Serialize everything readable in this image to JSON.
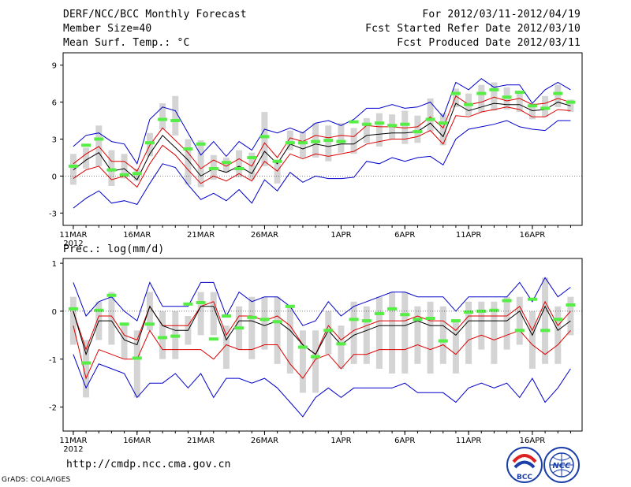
{
  "header": {
    "title": "DERF/NCC/BCC Monthly Forecast",
    "member_size": "Member Size=40",
    "variable": "Mean Surf. Temp.: °C",
    "period": "For 2012/03/11-2012/04/19",
    "fcst_started": "Fcst Started Refer Date 2012/03/10",
    "fcst_produced": "Fcst Produced Date 2012/03/11"
  },
  "footer": {
    "url": "http://cmdp.ncc.cma.gov.cn",
    "grads": "GrADS: COLA/IGES",
    "logo1_text": "BCC",
    "logo2_text": "NCC"
  },
  "colors": {
    "box": "#d4d4d4",
    "obs": "#55ee44",
    "mean": "#000000",
    "std": "#dd0000",
    "range": "#0000cc"
  },
  "chart_data": [
    {
      "type": "line",
      "title": "Mean Surf. Temp.: °C",
      "x_tick_labels": [
        "11MAR",
        "16MAR",
        "21MAR",
        "26MAR",
        "1APR",
        "6APR",
        "11APR",
        "16APR"
      ],
      "x_tick_days": [
        1,
        6,
        11,
        16,
        22,
        27,
        32,
        37
      ],
      "x_sublabel": "2012",
      "days": [
        1,
        2,
        3,
        4,
        5,
        6,
        7,
        8,
        9,
        10,
        11,
        12,
        13,
        14,
        15,
        16,
        17,
        18,
        19,
        20,
        21,
        22,
        23,
        24,
        25,
        26,
        27,
        28,
        29,
        30,
        31,
        32,
        33,
        34,
        35,
        36,
        37,
        38,
        39,
        40
      ],
      "ylim": [
        -4,
        10
      ],
      "y_ticks": [
        -3,
        0,
        3,
        6,
        9
      ],
      "series": [
        {
          "name": "max",
          "values": [
            -2.6,
            -1.8,
            -1.2,
            -2.2,
            -2.0,
            -2.3,
            -0.6,
            1.0,
            0.7,
            -0.7,
            -1.9,
            -1.4,
            -2.0,
            -1.1,
            -2.2,
            -0.3,
            -1.2,
            0.3,
            -0.5,
            0.0,
            -0.2,
            -0.2,
            -0.1,
            1.2,
            1.0,
            1.5,
            1.2,
            1.5,
            1.6,
            0.9,
            3.0,
            3.8,
            4.0,
            4.2,
            4.5,
            4.0,
            3.8,
            3.7,
            4.5,
            4.5
          ]
        },
        {
          "name": "std_low",
          "values": [
            -0.2,
            0.5,
            0.8,
            -0.3,
            0.0,
            -0.9,
            1.0,
            2.5,
            1.7,
            0.5,
            -0.6,
            0.0,
            -0.4,
            0.2,
            -0.4,
            1.2,
            0.4,
            1.8,
            1.4,
            1.8,
            1.6,
            1.8,
            2.0,
            2.6,
            2.8,
            3.0,
            3.0,
            3.2,
            3.7,
            2.6,
            4.9,
            4.8,
            5.2,
            5.4,
            5.6,
            5.4,
            4.8,
            4.8,
            5.4,
            5.3
          ]
        },
        {
          "name": "mean",
          "values": [
            0.5,
            1.3,
            1.9,
            0.4,
            0.6,
            -0.3,
            1.8,
            3.3,
            2.3,
            1.3,
            0.0,
            0.6,
            0.3,
            0.8,
            0.2,
            2.0,
            1.0,
            2.6,
            2.2,
            2.6,
            2.4,
            2.6,
            2.6,
            3.3,
            3.4,
            3.5,
            3.5,
            3.6,
            4.3,
            3.2,
            5.9,
            5.3,
            5.6,
            5.9,
            5.8,
            5.8,
            5.3,
            5.4,
            6.0,
            5.7
          ]
        },
        {
          "name": "std_high",
          "values": [
            1.0,
            1.8,
            2.4,
            1.2,
            1.2,
            0.4,
            2.5,
            3.9,
            2.9,
            1.9,
            0.6,
            1.3,
            0.8,
            1.4,
            0.8,
            2.7,
            1.5,
            3.1,
            2.8,
            3.3,
            3.1,
            3.3,
            3.2,
            4.1,
            4.0,
            4.0,
            3.9,
            4.0,
            4.8,
            3.9,
            6.5,
            5.8,
            6.0,
            6.4,
            6.1,
            6.3,
            5.8,
            5.9,
            6.3,
            6.0
          ]
        },
        {
          "name": "min",
          "values": [
            2.4,
            3.3,
            3.5,
            2.8,
            2.6,
            1.0,
            4.6,
            5.6,
            5.3,
            3.5,
            1.7,
            2.8,
            1.6,
            2.8,
            2.1,
            3.8,
            3.5,
            3.9,
            3.5,
            4.3,
            4.5,
            4.1,
            4.6,
            5.5,
            5.5,
            5.8,
            5.5,
            5.6,
            6.0,
            4.8,
            7.6,
            7.0,
            7.9,
            7.2,
            7.4,
            7.4,
            5.9,
            7.0,
            7.6,
            7.0
          ]
        },
        {
          "name": "box_low",
          "values": [
            -0.7,
            0.6,
            0.8,
            -0.8,
            -0.2,
            -0.4,
            1.6,
            3.8,
            3.3,
            -0.7,
            -0.9,
            -0.3,
            0.3,
            -0.1,
            -0.3,
            0.8,
            -0.6,
            2.1,
            1.5,
            1.5,
            1.2,
            1.9,
            1.8,
            2.7,
            2.4,
            3.0,
            2.6,
            2.7,
            3.6,
            2.5,
            5.6,
            4.9,
            5.2,
            5.3,
            5.4,
            5.2,
            4.6,
            4.8,
            5.6,
            5.2
          ]
        },
        {
          "name": "box_high",
          "values": [
            1.8,
            2.3,
            4.1,
            2.1,
            1.8,
            0.6,
            3.5,
            5.9,
            6.5,
            3.0,
            2.9,
            1.7,
            1.5,
            2.1,
            1.9,
            5.2,
            1.3,
            3.7,
            3.6,
            4.3,
            4.1,
            4.3,
            3.9,
            4.7,
            5.1,
            5.0,
            5.3,
            4.9,
            6.3,
            5.1,
            7.1,
            6.7,
            7.4,
            7.6,
            7.2,
            6.8,
            5.9,
            6.5,
            7.4,
            6.2
          ]
        },
        {
          "name": "observed",
          "values": [
            0.8,
            2.5,
            3.0,
            0.5,
            0.1,
            0.2,
            2.7,
            4.6,
            4.5,
            2.2,
            2.6,
            0.6,
            1.1,
            0.6,
            1.5,
            3.2,
            1.2,
            2.7,
            2.7,
            2.8,
            2.9,
            2.8,
            4.4,
            4.2,
            4.3,
            4.1,
            4.2,
            3.6,
            4.6,
            4.3,
            6.7,
            5.8,
            6.7,
            7.0,
            6.4,
            6.8,
            5.7,
            5.5,
            6.7,
            6.0
          ]
        }
      ]
    },
    {
      "type": "line",
      "title": "Prec.: log(mm/d)",
      "x_tick_labels": [
        "11MAR",
        "16MAR",
        "21MAR",
        "26MAR",
        "1APR",
        "6APR",
        "11APR",
        "16APR"
      ],
      "x_tick_days": [
        1,
        6,
        11,
        16,
        22,
        27,
        32,
        37
      ],
      "x_sublabel": "2012",
      "days": [
        1,
        2,
        3,
        4,
        5,
        6,
        7,
        8,
        9,
        10,
        11,
        12,
        13,
        14,
        15,
        16,
        17,
        18,
        19,
        20,
        21,
        22,
        23,
        24,
        25,
        26,
        27,
        28,
        29,
        30,
        31,
        32,
        33,
        34,
        35,
        36,
        37,
        38,
        39,
        40
      ],
      "ylim": [
        -2.5,
        1.1
      ],
      "y_ticks": [
        -2,
        -1,
        0,
        1
      ],
      "series": [
        {
          "name": "max",
          "values": [
            -0.9,
            -1.6,
            -1.1,
            -1.2,
            -1.3,
            -1.8,
            -1.5,
            -1.5,
            -1.3,
            -1.6,
            -1.3,
            -1.8,
            -1.4,
            -1.4,
            -1.5,
            -1.4,
            -1.6,
            -1.9,
            -2.2,
            -1.8,
            -1.6,
            -1.8,
            -1.6,
            -1.6,
            -1.6,
            -1.6,
            -1.5,
            -1.7,
            -1.7,
            -1.7,
            -1.9,
            -1.6,
            -1.5,
            -1.6,
            -1.5,
            -1.8,
            -1.4,
            -1.9,
            -1.6,
            -1.2
          ]
        },
        {
          "name": "std_low",
          "values": [
            -0.3,
            -1.4,
            -0.8,
            -0.9,
            -1.0,
            -1.0,
            -0.4,
            -0.8,
            -0.8,
            -0.8,
            -0.8,
            -1.0,
            -0.7,
            -0.8,
            -0.8,
            -0.7,
            -0.7,
            -1.1,
            -1.4,
            -1.0,
            -0.9,
            -1.2,
            -0.9,
            -0.9,
            -0.8,
            -0.8,
            -0.8,
            -0.7,
            -0.8,
            -0.7,
            -0.9,
            -0.6,
            -0.5,
            -0.6,
            -0.5,
            -0.4,
            -0.7,
            -0.9,
            -0.7,
            -0.4
          ]
        },
        {
          "name": "mean",
          "values": [
            0.0,
            -0.9,
            -0.2,
            -0.2,
            -0.6,
            -0.7,
            0.1,
            -0.3,
            -0.4,
            -0.4,
            0.1,
            0.1,
            -0.6,
            -0.2,
            -0.2,
            -0.3,
            -0.2,
            -0.4,
            -0.7,
            -0.9,
            -0.4,
            -0.7,
            -0.5,
            -0.4,
            -0.3,
            -0.3,
            -0.3,
            -0.2,
            -0.3,
            -0.3,
            -0.5,
            -0.2,
            -0.2,
            -0.2,
            -0.2,
            0.0,
            -0.5,
            0.1,
            -0.4,
            -0.2
          ]
        },
        {
          "name": "std_high",
          "values": [
            0.0,
            -0.8,
            -0.1,
            -0.1,
            -0.5,
            -0.6,
            0.1,
            -0.3,
            -0.3,
            -0.3,
            0.1,
            0.2,
            -0.5,
            -0.1,
            -0.1,
            -0.2,
            -0.1,
            -0.3,
            -0.7,
            -0.9,
            -0.3,
            -0.6,
            -0.4,
            -0.3,
            -0.2,
            -0.2,
            -0.2,
            -0.1,
            -0.2,
            -0.2,
            -0.4,
            -0.1,
            -0.1,
            -0.1,
            -0.1,
            0.1,
            -0.4,
            0.2,
            -0.3,
            0.0
          ]
        },
        {
          "name": "min",
          "values": [
            0.6,
            -0.1,
            0.2,
            0.3,
            0.0,
            -0.2,
            0.6,
            0.1,
            0.1,
            0.1,
            0.6,
            0.6,
            -0.1,
            0.4,
            0.2,
            0.3,
            0.3,
            0.1,
            -0.3,
            -0.2,
            0.2,
            -0.1,
            0.1,
            0.2,
            0.3,
            0.4,
            0.4,
            0.3,
            0.3,
            0.3,
            0.0,
            0.3,
            0.3,
            0.3,
            0.3,
            0.6,
            0.2,
            0.7,
            0.3,
            0.5
          ]
        },
        {
          "name": "box_low",
          "values": [
            -0.7,
            -1.8,
            -0.6,
            -0.7,
            -1.0,
            -1.8,
            -0.4,
            -1.0,
            -1.0,
            -0.7,
            -0.5,
            -0.5,
            -1.2,
            -0.8,
            -1.0,
            -0.8,
            -1.1,
            -1.3,
            -1.7,
            -1.7,
            -0.9,
            -1.2,
            -1.1,
            -1.1,
            -1.2,
            -1.3,
            -1.3,
            -1.1,
            -1.3,
            -1.1,
            -1.3,
            -1.1,
            -0.8,
            -1.1,
            -0.8,
            -0.7,
            -1.2,
            -1.1,
            -1.1,
            -0.5
          ]
        },
        {
          "name": "box_high",
          "values": [
            0.3,
            -0.6,
            0.2,
            0.4,
            -0.3,
            -0.4,
            0.4,
            0.0,
            0.0,
            -0.1,
            0.4,
            0.4,
            -0.3,
            0.1,
            0.3,
            0.3,
            0.3,
            0.1,
            -0.4,
            -0.4,
            0.0,
            -0.3,
            0.2,
            0.1,
            0.3,
            0.4,
            0.4,
            0.1,
            0.2,
            0.1,
            -0.2,
            0.2,
            0.2,
            0.2,
            0.3,
            0.3,
            0.0,
            0.7,
            0.1,
            0.3
          ]
        },
        {
          "name": "observed",
          "values": [
            0.05,
            -1.08,
            0.02,
            0.33,
            -0.27,
            -0.98,
            -0.27,
            -0.55,
            -0.52,
            0.15,
            0.18,
            -0.58,
            -0.1,
            -0.35,
            -0.13,
            -0.17,
            -0.22,
            0.1,
            -0.75,
            -0.95,
            -0.4,
            -0.68,
            -0.17,
            -0.2,
            -0.05,
            0.05,
            -0.07,
            -0.17,
            -0.15,
            -0.62,
            -0.2,
            -0.02,
            0.0,
            0.02,
            0.22,
            -0.4,
            0.25,
            -0.4,
            -0.17,
            0.13
          ]
        }
      ]
    }
  ]
}
